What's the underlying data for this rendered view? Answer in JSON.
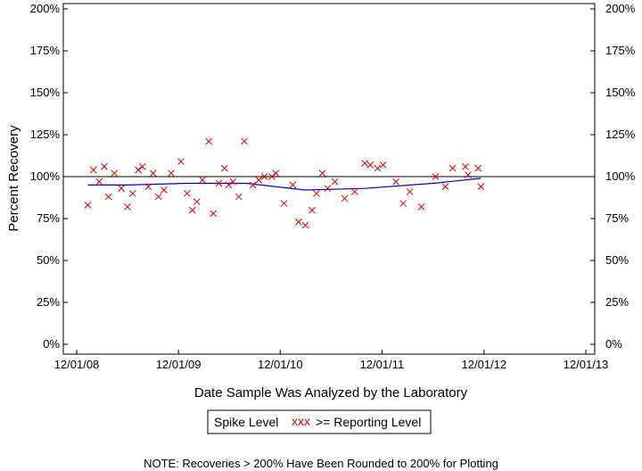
{
  "chart_data": {
    "type": "scatter",
    "xlabel": "Date Sample Was Analyzed by the Laboratory",
    "ylabel": "Percent Recovery",
    "ylim": [
      0,
      200
    ],
    "y_ticks": [
      0,
      25,
      50,
      75,
      100,
      125,
      150,
      175,
      200
    ],
    "y_tick_labels": [
      "0%",
      "25%",
      "50%",
      "75%",
      "100%",
      "125%",
      "150%",
      "175%",
      "200%"
    ],
    "xlim": [
      "2008-12-01",
      "2013-12-01"
    ],
    "x_ticks": [
      "2008-12-01",
      "2009-12-01",
      "2010-12-01",
      "2011-12-01",
      "2012-12-01",
      "2013-12-01"
    ],
    "x_tick_labels": [
      "12/01/08",
      "12/01/09",
      "12/01/10",
      "12/01/11",
      "12/01/12",
      "12/01/13"
    ],
    "reference_line": 100,
    "grid": false,
    "legend_position": "bottom",
    "colors": {
      "points": "#dd0000",
      "trend": "#0000cc",
      "reference": "#000000"
    },
    "series": [
      {
        "name": ">= Reporting Level",
        "marker": "x",
        "x": [
          "2009-01-10",
          "2009-01-30",
          "2009-02-20",
          "2009-03-10",
          "2009-03-25",
          "2009-04-15",
          "2009-05-10",
          "2009-06-01",
          "2009-06-20",
          "2009-07-10",
          "2009-07-25",
          "2009-08-15",
          "2009-09-01",
          "2009-09-20",
          "2009-10-10",
          "2009-11-05",
          "2009-12-10",
          "2010-01-01",
          "2010-01-20",
          "2010-02-05",
          "2010-02-25",
          "2010-03-20",
          "2010-04-05",
          "2010-04-25",
          "2010-05-15",
          "2010-05-30",
          "2010-06-15",
          "2010-07-05",
          "2010-07-25",
          "2010-08-25",
          "2010-09-15",
          "2010-10-05",
          "2010-11-01",
          "2010-11-15",
          "2010-12-15",
          "2011-01-15",
          "2011-02-05",
          "2011-03-01",
          "2011-03-25",
          "2011-04-10",
          "2011-05-01",
          "2011-05-20",
          "2011-06-15",
          "2011-07-20",
          "2011-08-25",
          "2011-09-30",
          "2011-10-20",
          "2011-11-15",
          "2011-12-05",
          "2012-01-20",
          "2012-02-15",
          "2012-03-10",
          "2012-04-20",
          "2012-06-10",
          "2012-07-15",
          "2012-08-10",
          "2012-09-25",
          "2012-10-05",
          "2012-11-10",
          "2012-11-20"
        ],
        "values": [
          83,
          104,
          97,
          106,
          88,
          102,
          93,
          82,
          90,
          104,
          106,
          94,
          102,
          88,
          92,
          102,
          109,
          90,
          80,
          85,
          98,
          121,
          78,
          96,
          105,
          95,
          97,
          88,
          121,
          95,
          98,
          100,
          100,
          102,
          84,
          95,
          73,
          71,
          80,
          90,
          102,
          93,
          97,
          87,
          91,
          108,
          107,
          105,
          107,
          97,
          84,
          91,
          82,
          100,
          94,
          105,
          106,
          101,
          105,
          94
        ]
      },
      {
        "name": "Spike Level",
        "marker": "line",
        "x": [
          "2009-01-10",
          "2009-06-01",
          "2010-01-01",
          "2010-08-01",
          "2011-03-01",
          "2011-10-01",
          "2012-06-01",
          "2012-11-20"
        ],
        "values": [
          95,
          95,
          96,
          96,
          92,
          93,
          96,
          99
        ]
      }
    ],
    "legend": {
      "spike_label": "Spike Level",
      "reporting_label": ">= Reporting Level",
      "reporting_symbol": "xxx"
    },
    "note": "NOTE: Recoveries > 200% Have Been Rounded to 200% for Plotting"
  }
}
